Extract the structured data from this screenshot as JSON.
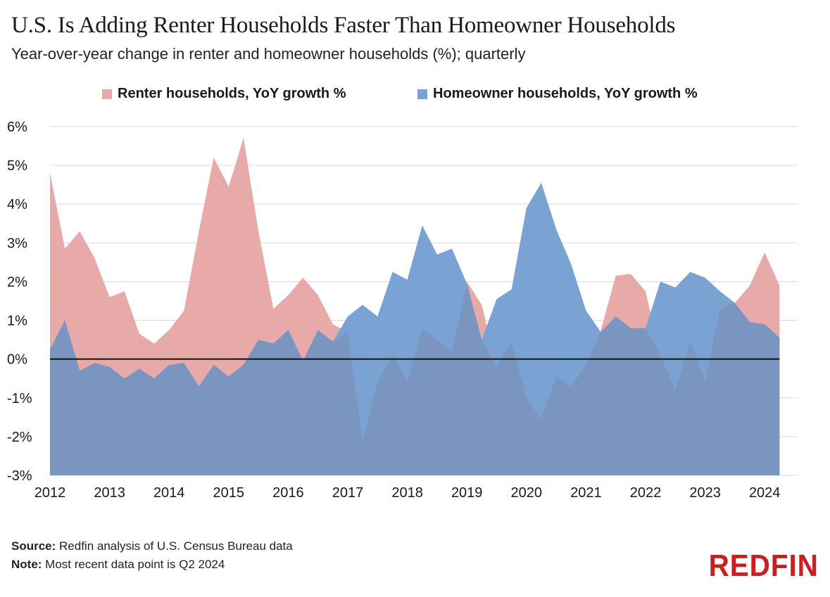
{
  "header": {
    "title": "U.S. Is Adding Renter Households Faster Than Homeowner Households",
    "subtitle": "Year-over-year change in renter and homeowner households (%); quarterly"
  },
  "footer": {
    "source_label": "Source:",
    "source_text": " Redfin analysis of U.S. Census Bureau data",
    "note_label": "Note:",
    "note_text": " Most recent data point is Q2 2024"
  },
  "logo": {
    "text": "REDFIN",
    "color": "#c82021"
  },
  "colors": {
    "renter": "#e8a9a9",
    "homeowner": "#7aa3d4",
    "overlap": "#7b95c1",
    "grid": "#d9d9d9",
    "zero_line": "#111111"
  },
  "chart_data": {
    "type": "area",
    "title": "U.S. Is Adding Renter Households Faster Than Homeowner Households",
    "subtitle": "Year-over-year change in renter and homeowner households (%); quarterly",
    "xlabel": "",
    "ylabel": "",
    "ylim": [
      -3,
      6
    ],
    "yticks": [
      -3,
      -2,
      -1,
      0,
      1,
      2,
      3,
      4,
      5,
      6
    ],
    "ytick_labels": [
      "-3%",
      "-2%",
      "-1%",
      "0%",
      "1%",
      "2%",
      "3%",
      "4%",
      "5%",
      "6%"
    ],
    "xtick_labels": [
      "2012",
      "2013",
      "2014",
      "2015",
      "2016",
      "2017",
      "2018",
      "2019",
      "2020",
      "2021",
      "2022",
      "2023",
      "2024"
    ],
    "grid": true,
    "legend": "top",
    "x": [
      "2012 Q1",
      "2012 Q2",
      "2012 Q3",
      "2012 Q4",
      "2013 Q1",
      "2013 Q2",
      "2013 Q3",
      "2013 Q4",
      "2014 Q1",
      "2014 Q2",
      "2014 Q3",
      "2014 Q4",
      "2015 Q1",
      "2015 Q2",
      "2015 Q3",
      "2015 Q4",
      "2016 Q1",
      "2016 Q2",
      "2016 Q3",
      "2016 Q4",
      "2017 Q1",
      "2017 Q2",
      "2017 Q3",
      "2017 Q4",
      "2018 Q1",
      "2018 Q2",
      "2018 Q3",
      "2018 Q4",
      "2019 Q1",
      "2019 Q2",
      "2019 Q3",
      "2019 Q4",
      "2020 Q1",
      "2020 Q2",
      "2020 Q3",
      "2020 Q4",
      "2021 Q1",
      "2021 Q2",
      "2021 Q3",
      "2021 Q4",
      "2022 Q1",
      "2022 Q2",
      "2022 Q3",
      "2022 Q4",
      "2023 Q1",
      "2023 Q2",
      "2023 Q3",
      "2023 Q4",
      "2024 Q1",
      "2024 Q2"
    ],
    "series": [
      {
        "name": "Renter households, YoY growth %",
        "color": "#e8a9a9",
        "values": [
          4.8,
          2.85,
          3.3,
          2.6,
          1.6,
          1.75,
          0.65,
          0.4,
          0.75,
          1.25,
          3.3,
          5.2,
          4.45,
          5.7,
          3.3,
          1.3,
          1.65,
          2.1,
          1.65,
          0.9,
          0.7,
          -2.1,
          -0.6,
          0.1,
          -0.55,
          0.8,
          0.5,
          0.2,
          2.0,
          1.4,
          -0.2,
          0.45,
          -1.0,
          -1.55,
          -0.45,
          -0.7,
          -0.15,
          0.75,
          2.15,
          2.2,
          1.75,
          0.1,
          -0.8,
          0.45,
          -0.55,
          1.3,
          1.45,
          1.9,
          2.75,
          1.9
        ]
      },
      {
        "name": "Homeowner households, YoY growth %",
        "color": "#7aa3d4",
        "values": [
          0.25,
          1.0,
          -0.3,
          -0.1,
          -0.2,
          -0.5,
          -0.25,
          -0.5,
          -0.15,
          -0.1,
          -0.7,
          -0.15,
          -0.45,
          -0.15,
          0.5,
          0.4,
          0.75,
          -0.05,
          0.75,
          0.45,
          1.1,
          1.4,
          1.1,
          2.25,
          2.05,
          3.45,
          2.7,
          2.85,
          1.95,
          0.5,
          1.55,
          1.8,
          3.9,
          4.55,
          3.35,
          2.45,
          1.25,
          0.7,
          1.1,
          0.8,
          0.8,
          2.0,
          1.85,
          2.25,
          2.1,
          1.75,
          1.45,
          0.95,
          0.9,
          0.55
        ]
      }
    ]
  }
}
